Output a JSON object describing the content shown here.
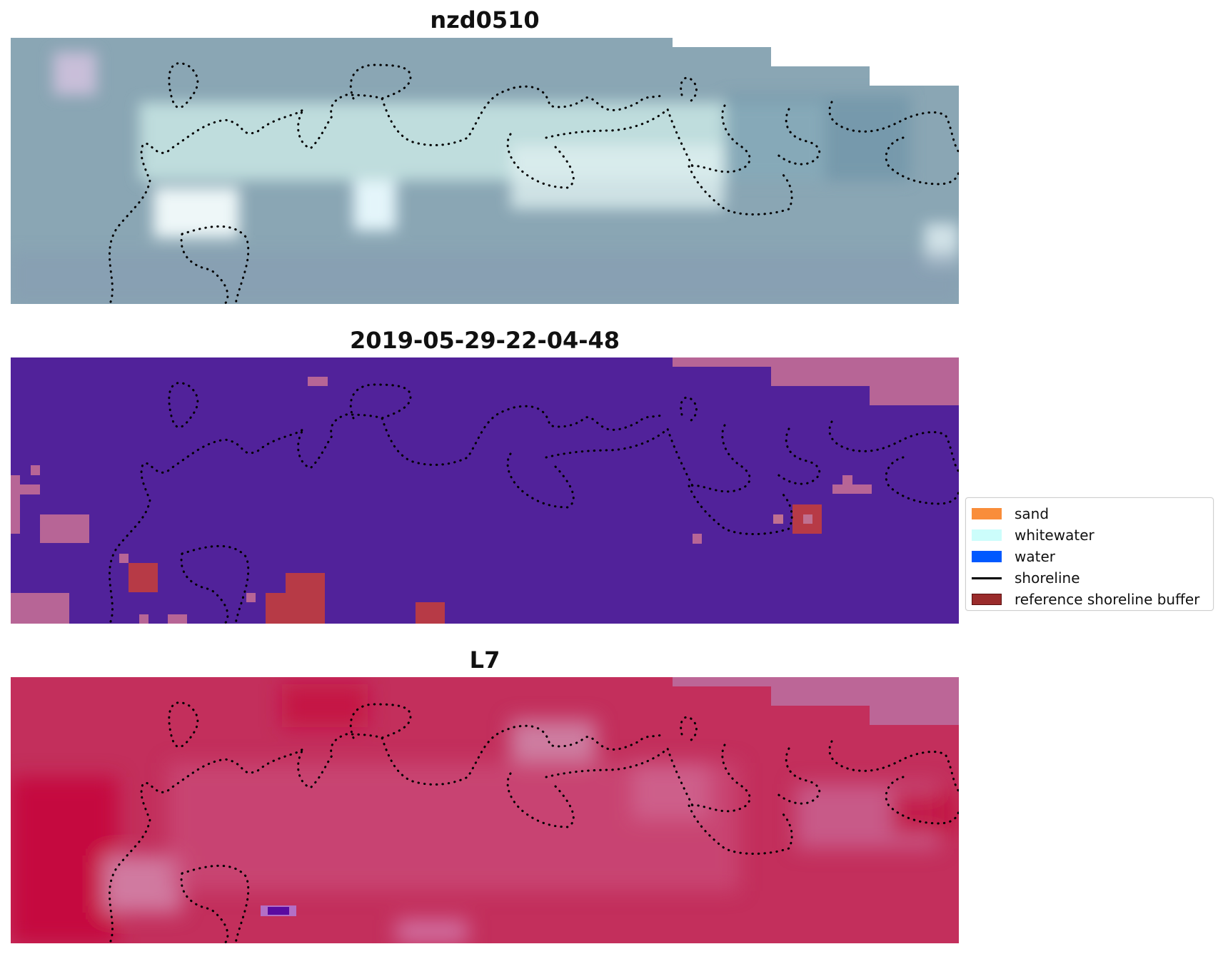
{
  "panels": [
    {
      "title": "nzd0510",
      "kind": "rgb"
    },
    {
      "title": "2019-05-29-22-04-48",
      "kind": "classified"
    },
    {
      "title": "L7",
      "kind": "false-color"
    }
  ],
  "legend": {
    "items": [
      {
        "label": "sand",
        "color": "#f98d3a",
        "type": "patch"
      },
      {
        "label": "whitewater",
        "color": "#ccfdfb",
        "type": "patch"
      },
      {
        "label": "water",
        "color": "#0059ff",
        "type": "patch"
      },
      {
        "label": "shoreline",
        "color": "#000000",
        "type": "line"
      },
      {
        "label": "reference shoreline buffer",
        "color": "#9a2b2b",
        "type": "patch"
      }
    ]
  },
  "colors": {
    "rgb_base": "#8aa6b4",
    "classified_base": "#51229a",
    "classified_nodata": "#b76596",
    "classified_buffer": "#b73a46",
    "falsecolor_base": "#c1305e",
    "nodata_block": "#bc6697"
  }
}
